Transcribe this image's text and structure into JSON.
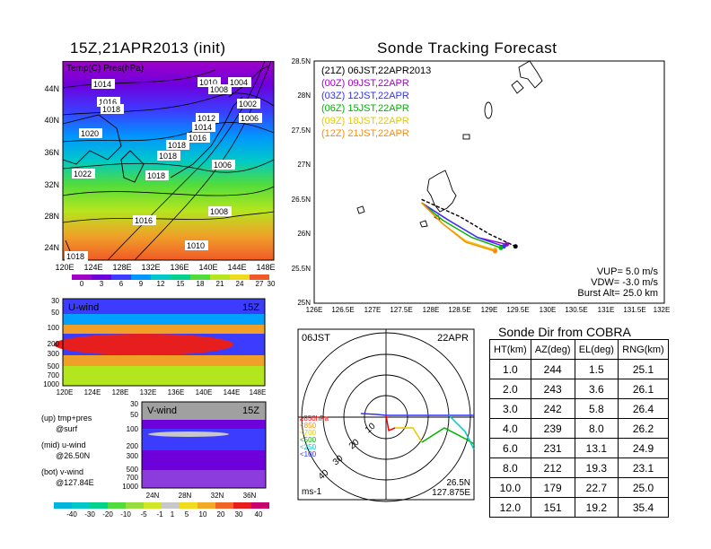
{
  "left": {
    "map_title": "15Z,21APR2013 (init)",
    "map_label": "Temp(C) Pres(hPa)",
    "map_lat_ticks": [
      "44N",
      "40N",
      "36N",
      "32N",
      "28N",
      "24N"
    ],
    "map_lon_ticks": [
      "120E",
      "124E",
      "128E",
      "132E",
      "136E",
      "140E",
      "144E",
      "148E"
    ],
    "pressure_labels": [
      "1014",
      "1016",
      "1018",
      "1020",
      "1022",
      "1018",
      "1016",
      "1018",
      "1010",
      "1008",
      "1004",
      "1002",
      "1006",
      "1012",
      "1014",
      "1016",
      "1018",
      "1008",
      "1006",
      "1010",
      "1018"
    ],
    "temp_colorbar": [
      "0",
      "3",
      "6",
      "9",
      "12",
      "15",
      "18",
      "21",
      "24",
      "27",
      "30"
    ],
    "u_title": "U-wind",
    "u_time": "15Z",
    "u_levels": [
      "30",
      "50",
      "100",
      "200",
      "300",
      "500",
      "700",
      "1000"
    ],
    "u_lon_ticks": [
      "120E",
      "124E",
      "128E",
      "132E",
      "136E",
      "140E",
      "144E",
      "148E"
    ],
    "v_title": "V-wind",
    "v_time": "15Z",
    "v_levels": [
      "30",
      "50",
      "100",
      "200",
      "300",
      "500",
      "700",
      "1000"
    ],
    "v_lat_ticks": [
      "24N",
      "28N",
      "32N",
      "36N"
    ],
    "notes": [
      {
        "a": "(up) tmp+pres",
        "b": "@surf"
      },
      {
        "a": "(mid) u-wind",
        "b": "@26.50N"
      },
      {
        "a": "(bot) v-wind",
        "b": "@127.84E"
      }
    ],
    "wind_colorbar": [
      "-40",
      "-30",
      "-20",
      "-10",
      "-5",
      "-1",
      "1",
      "5",
      "10",
      "20",
      "30",
      "40"
    ]
  },
  "tracking": {
    "title": "Sonde Tracking Forecast",
    "lat_ticks": [
      "28.5N",
      "28N",
      "27.5N",
      "27N",
      "26.5N",
      "26N",
      "25.5N",
      "25N"
    ],
    "lon_ticks": [
      "126E",
      "126.5E",
      "127E",
      "127.5E",
      "128E",
      "128.5E",
      "129E",
      "129.5E",
      "130E",
      "130.5E",
      "131E",
      "131.5E",
      "132E"
    ],
    "legend": [
      {
        "text": "(21Z)  06JST,22APR2013",
        "color": "#000000"
      },
      {
        "text": "(00Z)  09JST,22APR",
        "color": "#a000c8"
      },
      {
        "text": "(03Z)  12JST,22APR",
        "color": "#3232ff"
      },
      {
        "text": "(06Z)  15JST,22APR",
        "color": "#00b400"
      },
      {
        "text": "(09Z)  18JST,22APR",
        "color": "#e6c800"
      },
      {
        "text": "(12Z)  21JST,22APR",
        "color": "#ff8c00"
      }
    ],
    "params": [
      "VUP=  5.0 m/s",
      "VDW= -3.0 m/s",
      "Burst Alt= 25.0 km"
    ]
  },
  "polar": {
    "time_left": "06JST",
    "time_right": "22APR",
    "levels": [
      {
        "text": "≥850hPa",
        "color": "#ff0000"
      },
      {
        "text": "<850",
        "color": "#ff8c00"
      },
      {
        "text": "<700",
        "color": "#e6c800"
      },
      {
        "text": "<500",
        "color": "#00b400"
      },
      {
        "text": "<250",
        "color": "#00c8c8"
      },
      {
        "text": "<100",
        "color": "#3232ff"
      }
    ],
    "ring_labels": [
      "10",
      "20",
      "30",
      "40"
    ],
    "unit": "ms-1",
    "loc_lat": "26.5N",
    "loc_lon": "127.875E"
  },
  "table": {
    "title": "Sonde Dir from COBRA",
    "headers": [
      "HT(km)",
      "AZ(deg)",
      "EL(deg)",
      "RNG(km)"
    ],
    "rows": [
      [
        "1.0",
        "244",
        "1.5",
        "25.1"
      ],
      [
        "2.0",
        "243",
        "3.6",
        "26.1"
      ],
      [
        "3.0",
        "242",
        "5.8",
        "26.4"
      ],
      [
        "4.0",
        "239",
        "8.0",
        "26.2"
      ],
      [
        "6.0",
        "231",
        "13.1",
        "24.9"
      ],
      [
        "8.0",
        "212",
        "19.3",
        "23.1"
      ],
      [
        "10.0",
        "179",
        "22.7",
        "25.0"
      ],
      [
        "12.0",
        "151",
        "19.2",
        "35.4"
      ]
    ]
  },
  "colors": {
    "temp_scale": [
      "#a000c8",
      "#6e00dc",
      "#3c3cff",
      "#0096ff",
      "#00c8c8",
      "#00d28c",
      "#50dc3c",
      "#b4e61e",
      "#f0dc1e",
      "#f0a028",
      "#f05a28"
    ],
    "wind_scale": [
      "#00b4dc",
      "#00c8c8",
      "#00d28c",
      "#50dc3c",
      "#96dc3c",
      "#d2e628",
      "#c8c8c8",
      "#f0dc1e",
      "#f0aa28",
      "#f06428",
      "#e61e1e",
      "#c8006e"
    ]
  },
  "chart_data": [
    {
      "type": "line",
      "title": "Sonde Tracking Forecast",
      "xlim": [
        126,
        132
      ],
      "ylim": [
        25,
        28.5
      ],
      "series": [
        {
          "name": "(21Z) 06JST,22APR2013",
          "x": [
            127.84,
            128.5,
            129.0,
            129.45
          ],
          "y": [
            26.5,
            26.25,
            26.0,
            25.82
          ]
        },
        {
          "name": "(00Z) 09JST,22APR",
          "x": [
            127.84,
            128.3,
            128.8,
            129.3
          ],
          "y": [
            26.45,
            26.2,
            25.95,
            25.85
          ]
        },
        {
          "name": "(03Z) 12JST,22APR",
          "x": [
            127.84,
            128.3,
            128.8,
            129.25
          ],
          "y": [
            26.45,
            26.2,
            25.95,
            25.82
          ]
        },
        {
          "name": "(06Z) 15JST,22APR",
          "x": [
            127.84,
            128.2,
            128.7,
            129.2
          ],
          "y": [
            26.45,
            26.2,
            25.95,
            25.8
          ]
        },
        {
          "name": "(09Z) 18JST,22APR",
          "x": [
            127.84,
            128.2,
            128.6,
            129.1
          ],
          "y": [
            26.45,
            26.15,
            25.9,
            25.77
          ]
        },
        {
          "name": "(12Z) 21JST,22APR",
          "x": [
            127.84,
            128.2,
            128.6,
            129.1
          ],
          "y": [
            26.45,
            26.15,
            25.88,
            25.75
          ]
        }
      ]
    },
    {
      "type": "table",
      "title": "Sonde Dir from COBRA",
      "columns": [
        "HT(km)",
        "AZ(deg)",
        "EL(deg)",
        "RNG(km)"
      ],
      "rows": [
        [
          1.0,
          244,
          1.5,
          25.1
        ],
        [
          2.0,
          243,
          3.6,
          26.1
        ],
        [
          3.0,
          242,
          5.8,
          26.4
        ],
        [
          4.0,
          239,
          8.0,
          26.2
        ],
        [
          6.0,
          231,
          13.1,
          24.9
        ],
        [
          8.0,
          212,
          19.3,
          23.1
        ],
        [
          10.0,
          179,
          22.7,
          25.0
        ],
        [
          12.0,
          151,
          19.2,
          35.4
        ]
      ]
    }
  ]
}
